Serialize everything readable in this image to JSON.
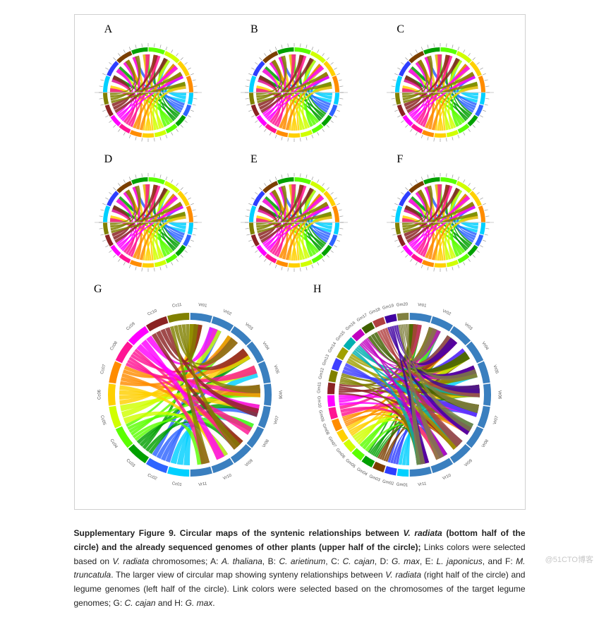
{
  "figure": {
    "panels_small": [
      {
        "label": "A",
        "species": "A. thaliana"
      },
      {
        "label": "B",
        "species": "C. arietinum"
      },
      {
        "label": "C",
        "species": "C. cajan"
      },
      {
        "label": "D",
        "species": "G. max"
      },
      {
        "label": "E",
        "species": "L. japonicus"
      },
      {
        "label": "F",
        "species": "M. truncatula"
      }
    ],
    "panels_large": [
      {
        "label": "G",
        "species": "C. cajan",
        "left_labels": [
          "Cc01",
          "Cc02",
          "Cc03",
          "Cc04",
          "Cc05",
          "Cc06",
          "Cc07",
          "Cc08",
          "Cc09",
          "Cc10",
          "Cc11"
        ],
        "right_labels": [
          "Vr01",
          "Vr02",
          "Vr03",
          "Vr04",
          "Vr05",
          "Vr06",
          "Vr07",
          "Vr08",
          "Vr09",
          "Vr10",
          "Vr11"
        ]
      },
      {
        "label": "H",
        "species": "G. max",
        "left_labels": [
          "Gm01",
          "Gm02",
          "Gm03",
          "Gm04",
          "Gm05",
          "Gm06",
          "Gm07",
          "Gm08",
          "Gm09",
          "Gm10",
          "Gm11",
          "Gm12",
          "Gm13",
          "Gm14",
          "Gm15",
          "Gm16",
          "Gm17",
          "Gm18",
          "Gm19",
          "Gm20"
        ],
        "right_labels": [
          "Vr01",
          "Vr02",
          "Vr03",
          "Vr04",
          "Vr05",
          "Vr06",
          "Vr07",
          "Vr08",
          "Vr09",
          "Vr10",
          "Vr11"
        ]
      }
    ],
    "chord_colors": [
      "#00d0ff",
      "#2e64ff",
      "#00a000",
      "#5aff00",
      "#d0ff00",
      "#ffd000",
      "#ff8c00",
      "#ff1493",
      "#ff00ff",
      "#8b2323",
      "#808000"
    ],
    "chord_colors_alt": [
      "#00d0ff",
      "#2e3eff",
      "#7b3f00",
      "#00a000",
      "#5aff00",
      "#d0ff00",
      "#ffd000",
      "#ff8c00",
      "#ff1493",
      "#ff00ff",
      "#8b2323",
      "#808000",
      "#4040ff",
      "#a0a000",
      "#00b0b0",
      "#c000c0",
      "#406000",
      "#b04040",
      "#4000a0",
      "#808040"
    ],
    "ring_color_top": "#888888",
    "ring_segments_bottom": [
      "#00d0ff",
      "#2e64ff",
      "#00a000",
      "#5aff00",
      "#d0ff00",
      "#ffd000",
      "#ff8c00",
      "#ff1493",
      "#ff00ff",
      "#8b2323",
      "#808000"
    ],
    "background": "#ffffff",
    "tick_color": "#888888"
  },
  "caption": {
    "title": "Supplementary Figure 9. Circular maps of the syntenic relationships between ",
    "species1": "V. radiata",
    "part2": " (bottom half of the circle) and the already sequenced genomes of other plants (upper half of the circle);",
    "body1": " Links colors were selected based on ",
    "body2": " chromosomes; A: ",
    "sA": "A. thaliana",
    "body3": ", B: ",
    "sB": "C. arietinum",
    "body4": ", C: ",
    "sC": "C. cajan",
    "body5": ", D: ",
    "sD": "G. max",
    "body6": ", E: ",
    "sE": "L. japonicus",
    "body7": ", and F: ",
    "sF": "M. truncatula",
    "body8": ". The larger view of circular map showing synteny relationships between ",
    "body9": " (right half of the circle) and legume genomes (left half of the circle). Link colors were selected based on the chromosomes of the target legume genomes; G: ",
    "sG": "C. cajan",
    "body10": " and H: ",
    "sH": "G. max",
    "body11": "."
  },
  "watermark": "@51CTO博客"
}
